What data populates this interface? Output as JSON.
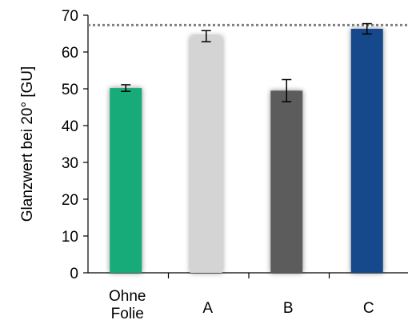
{
  "chart_data": {
    "type": "bar",
    "title": "",
    "xlabel": "",
    "ylabel": "Glanzwert bei 20° [GU]",
    "ylim": [
      0,
      70
    ],
    "yticks": [
      0,
      10,
      20,
      30,
      40,
      50,
      60,
      70
    ],
    "grid": false,
    "categories": [
      [
        "Ohne",
        "Folie"
      ],
      [
        "A"
      ],
      [
        "B"
      ],
      [
        "C"
      ]
    ],
    "values": [
      50.2,
      64.3,
      49.5,
      66.3
    ],
    "errors": [
      0.9,
      1.5,
      3.0,
      1.4
    ],
    "bar_colors": [
      "#13ab78",
      "#d4d4d4",
      "#5c5c5c",
      "#154a8b"
    ],
    "reference_line": {
      "value": 67.3,
      "style": "dotted",
      "color": "#7f7f7f"
    }
  }
}
